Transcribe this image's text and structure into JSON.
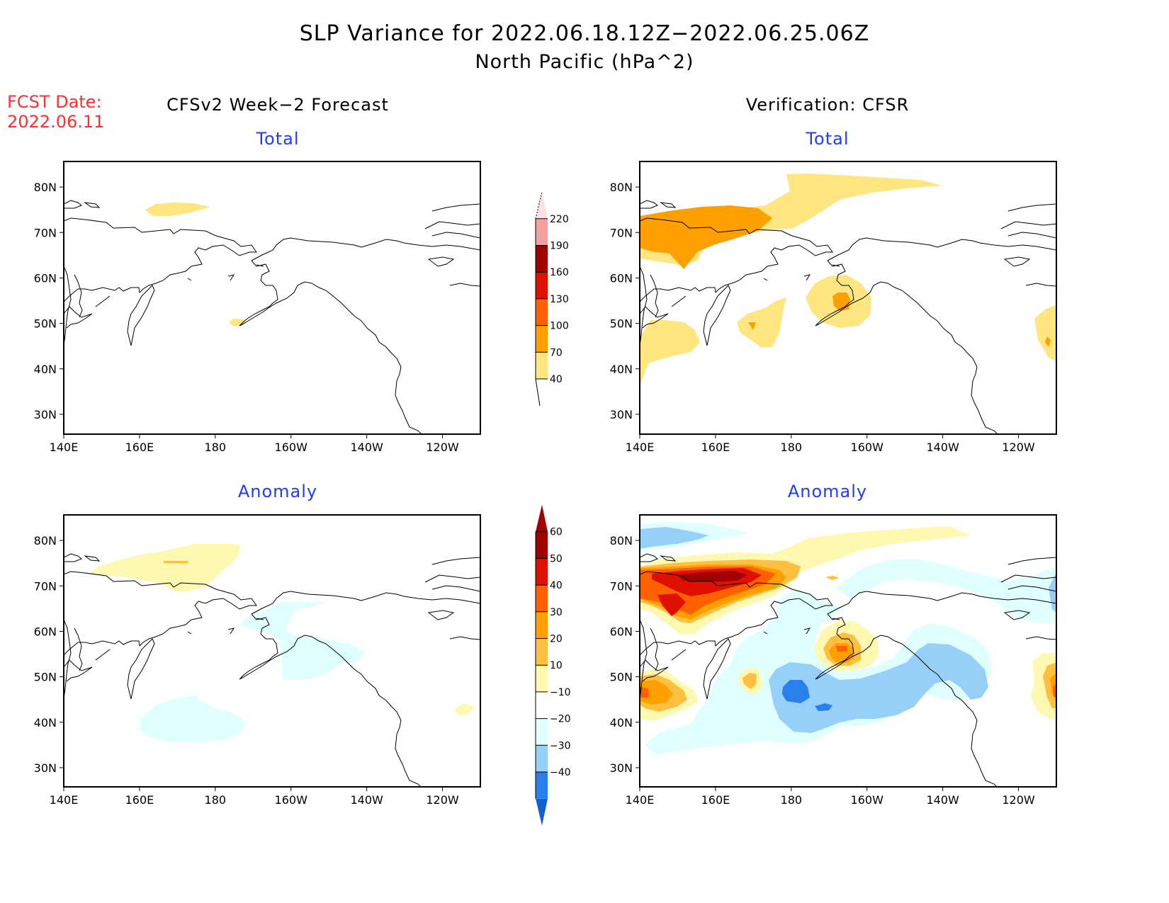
{
  "header": {
    "title": "SLP Variance for 2022.06.18.12Z−2022.06.25.06Z",
    "subtitle": "North Pacific (hPa^2)"
  },
  "fcst": {
    "label": "FCST Date:",
    "date": "2022.06.11"
  },
  "columns": {
    "left": "CFSv2 Week−2 Forecast",
    "right": "Verification: CFSR"
  },
  "panel_labels": {
    "total": "Total",
    "anomaly": "Anomaly"
  },
  "colors": {
    "title_red": "#ff3030",
    "panel_label_blue": "#1f3cff"
  },
  "chart_data": [
    {
      "type": "heatmap",
      "panel": "forecast-total",
      "title": "Total",
      "column": "CFSv2 Week-2 Forecast",
      "xlabel": "",
      "ylabel": "",
      "x_ticks": [
        "140E",
        "160E",
        "180",
        "160W",
        "140W",
        "120W"
      ],
      "y_ticks": [
        "80N",
        "70N",
        "60N",
        "50N",
        "40N",
        "30N"
      ],
      "lon_range": [
        140,
        250
      ],
      "lat_range": [
        25,
        85
      ],
      "features": [
        {
          "level": "40-70",
          "center": [
            187,
            75
          ],
          "desc": "small patch over East Siberian Sea"
        },
        {
          "level": "40-70",
          "center": [
            187,
            50
          ],
          "desc": "tiny patch south of Aleutians"
        }
      ]
    },
    {
      "type": "heatmap",
      "panel": "verification-total",
      "title": "Total",
      "column": "Verification: CFSR",
      "x_ticks": [
        "140E",
        "160E",
        "180",
        "160W",
        "140W",
        "120W"
      ],
      "y_ticks": [
        "80N",
        "70N",
        "60N",
        "50N",
        "40N",
        "30N"
      ],
      "lon_range": [
        140,
        250
      ],
      "lat_range": [
        25,
        85
      ],
      "features": [
        {
          "level": "40-70",
          "desc": "band from NE Siberia 65-83N extending to 200E"
        },
        {
          "level": "70-100",
          "desc": "core over NE Siberia 65-74N, 140-170E"
        },
        {
          "level": "40-70",
          "center": [
            197,
            54
          ],
          "desc": "Bering Sea / Alaska Peninsula maximum, 70-100 core"
        },
        {
          "level": "40-70",
          "center": [
            172,
            49
          ],
          "desc": "central N Pacific patch with small 70-100 core"
        },
        {
          "level": "40-70",
          "center": [
            147,
            45
          ],
          "desc": "near Japan/Kurils"
        },
        {
          "level": "40-70",
          "center": [
            248,
            46
          ],
          "desc": "right edge near 112W with small 70-100 core"
        }
      ]
    },
    {
      "type": "heatmap",
      "panel": "forecast-anomaly",
      "title": "Anomaly",
      "column": "CFSv2 Week-2 Forecast",
      "x_ticks": [
        "140E",
        "160E",
        "180",
        "160W",
        "140W",
        "120W"
      ],
      "y_ticks": [
        "80N",
        "70N",
        "60N",
        "50N",
        "40N",
        "30N"
      ],
      "lon_range": [
        140,
        250
      ],
      "lat_range": [
        25,
        85
      ],
      "features": [
        {
          "level": "10-20",
          "center": [
            170,
            75
          ],
          "desc": "positive band over E Siberian Sea, 20-30 sliver at 75N"
        },
        {
          "level": "-20--10",
          "center": [
            205,
            57
          ],
          "desc": "negative over Bering Strait to Gulf of Alaska"
        },
        {
          "level": "-20--10",
          "center": [
            182,
            40
          ],
          "desc": "negative central N Pacific"
        },
        {
          "level": "10-20",
          "center": [
            245,
            43
          ],
          "desc": "small positive near right edge"
        }
      ]
    },
    {
      "type": "heatmap",
      "panel": "verification-anomaly",
      "title": "Anomaly",
      "column": "Verification: CFSR",
      "x_ticks": [
        "140E",
        "160E",
        "180",
        "160W",
        "140W",
        "120W"
      ],
      "y_ticks": [
        "80N",
        "70N",
        "60N",
        "50N",
        "40N",
        "30N"
      ],
      "lon_range": [
        140,
        250
      ],
      "lat_range": [
        25,
        85
      ],
      "features": [
        {
          "level": "50-60",
          "center": [
            160,
            72
          ],
          "desc": "strong positive max over NE Siberia (>50)"
        },
        {
          "level": "40-50",
          "center": [
            151,
            68
          ],
          "desc": "secondary positive core"
        },
        {
          "level": "10-20",
          "desc": "positive band extending east at 78-82N to 230E"
        },
        {
          "level": "30-40",
          "center": [
            197,
            55
          ],
          "desc": "Bering Sea/Alaska Peninsula positive, 40-50 core"
        },
        {
          "level": "20-30",
          "center": [
            173,
            50
          ],
          "desc": "small positive central Pacific"
        },
        {
          "level": "30-40",
          "center": [
            143,
            45
          ],
          "desc": "near Japan, 40-50 sliver"
        },
        {
          "level": "30-40",
          "center": [
            249,
            45
          ],
          "desc": "right edge near 112W, 50-60 point"
        },
        {
          "level": "-40--30",
          "center": [
            180,
            46
          ],
          "desc": "strongest negative south of Aleutians"
        },
        {
          "level": "-30--20",
          "desc": "negative arc from 175E to 235W, 42-55N"
        },
        {
          "level": "-20--10",
          "desc": "broad weak negative 30-60N and 78-82N near 140-170E"
        }
      ]
    },
    {
      "type": "colorbar",
      "panel": "total-colorbar",
      "levels": [
        40,
        70,
        100,
        130,
        160,
        190,
        220
      ],
      "labels": [
        "40",
        "70",
        "100",
        "130",
        "160",
        "190",
        "220"
      ],
      "colors": [
        "#ffe680",
        "#ffa000",
        "#ff6000",
        "#e01000",
        "#a00000",
        "#f4a0a0",
        "#ffe0e0"
      ]
    },
    {
      "type": "colorbar",
      "panel": "anomaly-colorbar",
      "levels": [
        -40,
        -30,
        -20,
        -10,
        10,
        20,
        30,
        40,
        50,
        60
      ],
      "labels": [
        "−40",
        "−30",
        "−20",
        "−10",
        "10",
        "20",
        "30",
        "40",
        "50",
        "60"
      ],
      "colors": [
        "#1060d0",
        "#2a80ea",
        "#96cff8",
        "#e0ffff",
        "#ffffff",
        "#fff8b0",
        "#ffc040",
        "#ffa000",
        "#ff6000",
        "#e01000",
        "#a00000"
      ]
    }
  ]
}
